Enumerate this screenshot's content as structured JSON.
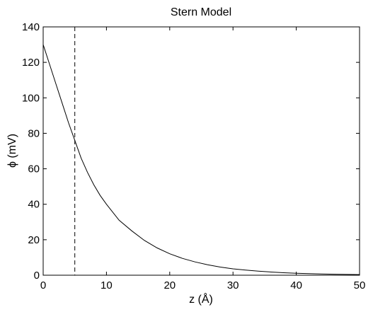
{
  "chart_data": {
    "type": "line",
    "title": "Stern Model",
    "xlabel": "z (Å)",
    "ylabel": "ϕ (mV)",
    "xlim": [
      0,
      50
    ],
    "ylim": [
      0,
      140
    ],
    "xticks": [
      0,
      10,
      20,
      30,
      40,
      50
    ],
    "yticks": [
      0,
      20,
      40,
      60,
      80,
      100,
      120,
      140
    ],
    "grid": false,
    "legend": "none",
    "series": [
      {
        "color": "#000000",
        "style": "solid",
        "x": [
          0,
          1,
          2,
          3,
          4,
          5,
          6,
          7,
          8,
          9,
          10,
          12,
          14,
          16,
          18,
          20,
          22,
          24,
          26,
          28,
          30,
          32,
          34,
          36,
          38,
          40,
          42,
          44,
          46,
          48,
          50
        ],
        "y": [
          130,
          119,
          108,
          97,
          86,
          76,
          66,
          58,
          51,
          45,
          40,
          31,
          25,
          19.6,
          15.4,
          12.1,
          9.5,
          7.5,
          5.9,
          4.6,
          3.6,
          2.9,
          2.3,
          1.8,
          1.4,
          1.1,
          0.9,
          0.7,
          0.55,
          0.43,
          0.34
        ]
      }
    ],
    "vlines": [
      {
        "x": 5,
        "style": "dashed",
        "color": "#000000"
      }
    ]
  }
}
